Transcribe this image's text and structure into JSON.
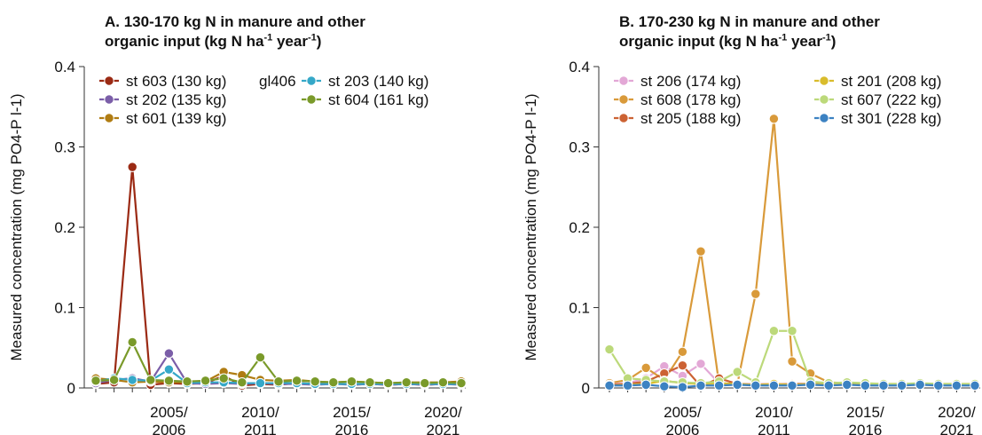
{
  "panels": [
    {
      "title_line1": "A. 130-170 kg N in manure and other",
      "title_line2_pre": "organic input (kg N ha",
      "title_sup1": "-1",
      "title_mid": " year",
      "title_sup2": "-1",
      "title_end": ")"
    },
    {
      "title_line1": "B. 170-230 kg N in manure and other",
      "title_line2_pre": "organic input (kg N ha",
      "title_sup1": "-1",
      "title_mid": " year",
      "title_sup2": "-1",
      "title_end": ")"
    }
  ],
  "chart_data": [
    {
      "type": "line",
      "title": "A. 130-170 kg N in manure and other organic input (kg N ha-1 year-1)",
      "ylabel": "Measured concentration (mg PO4-P l-1)",
      "ylim": [
        0,
        0.4
      ],
      "yticks": [
        "0",
        "0.1",
        "0.2",
        "0.3",
        "0.4"
      ],
      "x_positions_count": 21,
      "x_tick_labels": [
        {
          "line1": "2005/",
          "line2": "2006"
        },
        {
          "line1": "2010/",
          "line2": "2011"
        },
        {
          "line1": "2015/",
          "line2": "2016"
        },
        {
          "line1": "2020/",
          "line2": "2021"
        }
      ],
      "legend_extra": "gl406",
      "series": [
        {
          "name": "st 603 (130 kg)",
          "color": "#9b2a14",
          "values": [
            0.005,
            0.007,
            0.275,
            0.004,
            0.006,
            0.005,
            0.006,
            0.015,
            0.003,
            0.005,
            0.004,
            0.006,
            0.005,
            0.006,
            0.004,
            0.005,
            0.004,
            0.005,
            0.004,
            0.005,
            0.005
          ]
        },
        {
          "name": "st 202 (135 kg)",
          "color": "#7b5ea8",
          "values": [
            0.006,
            0.01,
            0.012,
            0.008,
            0.043,
            0.006,
            0.005,
            0.006,
            0.005,
            0.006,
            0.005,
            0.005,
            0.004,
            0.005,
            0.004,
            0.005,
            0.004,
            0.005,
            0.004,
            0.005,
            0.004
          ]
        },
        {
          "name": "st 601 (139 kg)",
          "color": "#b07c12",
          "values": [
            0.012,
            0.01,
            0.007,
            0.008,
            0.007,
            0.007,
            0.008,
            0.02,
            0.016,
            0.01,
            0.009,
            0.01,
            0.008,
            0.007,
            0.008,
            0.007,
            0.006,
            0.007,
            0.007,
            0.007,
            0.008
          ]
        },
        {
          "name": "st 203 (140 kg)",
          "color": "#35a8c8",
          "values": [
            0.008,
            0.012,
            0.01,
            0.009,
            0.023,
            0.006,
            0.007,
            0.007,
            0.006,
            0.006,
            0.006,
            0.006,
            0.005,
            0.005,
            0.005,
            0.005,
            0.005,
            0.005,
            0.005,
            0.005,
            0.005
          ]
        },
        {
          "name": "st 604 (161 kg)",
          "color": "#7a9a2a",
          "values": [
            0.009,
            0.01,
            0.057,
            0.01,
            0.009,
            0.008,
            0.009,
            0.012,
            0.007,
            0.038,
            0.008,
            0.009,
            0.008,
            0.007,
            0.008,
            0.007,
            0.006,
            0.007,
            0.006,
            0.007,
            0.006
          ]
        }
      ]
    },
    {
      "type": "line",
      "title": "B. 170-230 kg N in manure and other organic input (kg N ha-1 year-1)",
      "ylabel": "Measured concentration (mg PO4-P l-1)",
      "ylim": [
        0,
        0.4
      ],
      "yticks": [
        "0",
        "0.1",
        "0.2",
        "0.3",
        "0.4"
      ],
      "x_positions_count": 21,
      "x_tick_labels": [
        {
          "line1": "2005/",
          "line2": "2006"
        },
        {
          "line1": "2010/",
          "line2": "2011"
        },
        {
          "line1": "2015/",
          "line2": "2016"
        },
        {
          "line1": "2020/",
          "line2": "2021"
        }
      ],
      "series": [
        {
          "name": "st 206 (174 kg)",
          "color": "#e3a8d6",
          "values": [
            0.005,
            0.006,
            0.012,
            0.027,
            0.015,
            0.03,
            0.006,
            0.005,
            0.005,
            0.005,
            0.005,
            0.005,
            0.005,
            0.004,
            0.004,
            0.004,
            0.004,
            0.004,
            0.004,
            0.004,
            0.004
          ]
        },
        {
          "name": "st 608 (178 kg)",
          "color": "#d99a3a",
          "values": [
            0.006,
            0.01,
            0.025,
            0.01,
            0.045,
            0.17,
            0.005,
            0.005,
            0.117,
            0.335,
            0.033,
            0.018,
            0.007,
            0.006,
            0.005,
            0.005,
            0.005,
            0.005,
            0.005,
            0.005,
            0.005
          ]
        },
        {
          "name": "st 205 (188 kg)",
          "color": "#cc6233",
          "values": [
            0.004,
            0.005,
            0.008,
            0.018,
            0.028,
            0.002,
            0.012,
            0.005,
            0.004,
            0.004,
            0.005,
            0.005,
            0.004,
            0.004,
            0.004,
            0.004,
            0.004,
            0.004,
            0.004,
            0.004,
            0.004
          ]
        },
        {
          "name": "st 201 (208 kg)",
          "color": "#d9bc2c",
          "values": [
            0.003,
            0.004,
            0.005,
            0.009,
            0.006,
            0.005,
            0.006,
            0.005,
            0.004,
            0.005,
            0.004,
            0.005,
            0.004,
            0.005,
            0.004,
            0.005,
            0.004,
            0.005,
            0.004,
            0.005,
            0.004
          ]
        },
        {
          "name": "st 607 (222 kg)",
          "color": "#bcd97a",
          "values": [
            0.048,
            0.012,
            0.01,
            0.008,
            0.007,
            0.006,
            0.008,
            0.02,
            0.007,
            0.071,
            0.071,
            0.008,
            0.006,
            0.007,
            0.006,
            0.005,
            0.005,
            0.006,
            0.005,
            0.005,
            0.005
          ]
        },
        {
          "name": "st 301 (228 kg)",
          "color": "#3c82c2",
          "values": [
            0.003,
            0.003,
            0.004,
            0.002,
            0.001,
            0.003,
            0.003,
            0.004,
            0.003,
            0.003,
            0.003,
            0.004,
            0.003,
            0.004,
            0.003,
            0.003,
            0.003,
            0.004,
            0.003,
            0.003,
            0.003
          ]
        }
      ]
    }
  ]
}
